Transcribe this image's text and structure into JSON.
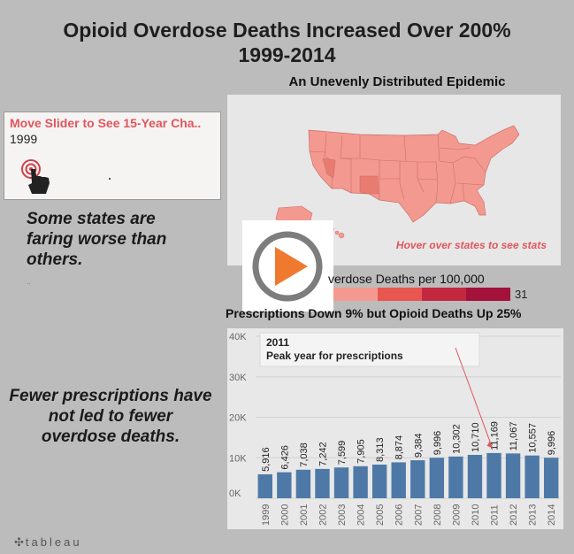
{
  "header": {
    "title_line1": "Opioid Overdose Deaths Increased Over 200%",
    "title_line2": "1999-2014"
  },
  "map": {
    "title": "An Unevenly Distributed Epidemic",
    "hint": "Hover over states to see stats",
    "land_color": "#f4998f",
    "dark_state_color": "#ea7b71",
    "border_color": "#c9716b"
  },
  "slider": {
    "title": "Move Slider to See 15-Year Cha..",
    "year": "1999",
    "icon": "touch-hand-icon"
  },
  "notes": {
    "states": "Some states are faring worse than others.",
    "rx": "Fewer prescriptions have not led to fewer overdose deaths.",
    "dots": ".."
  },
  "legend": {
    "title": "verdose Deaths per 100,000",
    "max_label": "31",
    "colors": [
      "#f4998f",
      "#e8574f",
      "#c4283f",
      "#a3123a"
    ]
  },
  "play_button": {
    "icon": "play-icon",
    "ring_color": "#7d7d7d",
    "fill_color": "#ef7a2f"
  },
  "bar_chart_title": "Prescriptions Down 9% but Opioid Deaths Up 25%",
  "chart_data": {
    "type": "bar",
    "title": "Prescriptions Down 9% but Opioid Deaths Up 25%",
    "categories": [
      "1999",
      "2000",
      "2001",
      "2002",
      "2003",
      "2004",
      "2005",
      "2006",
      "2007",
      "2008",
      "2009",
      "2010",
      "2011",
      "2012",
      "2013",
      "2014"
    ],
    "values": [
      5916,
      6426,
      7038,
      7242,
      7599,
      7905,
      8313,
      8874,
      9384,
      9996,
      10302,
      10710,
      11169,
      11067,
      10557,
      9996
    ],
    "data_labels": [
      "5,916",
      "6,426",
      "7,038",
      "7,242",
      "7,599",
      "7,905",
      "8,313",
      "8,874",
      "9,384",
      "9,996",
      "10,302",
      "10,710",
      "11,169",
      "11,067",
      "10,557",
      "9,996"
    ],
    "y_ticks": [
      "0K",
      "10K",
      "20K",
      "30K",
      "40K"
    ],
    "ylim": [
      0,
      40000
    ],
    "grid": true,
    "bar_color": "#4e79a7",
    "annotation": {
      "year": "2011",
      "text": "Peak year for prescriptions"
    }
  },
  "footer": {
    "brand": "tableau",
    "icon": "tableau-plus-icon"
  }
}
